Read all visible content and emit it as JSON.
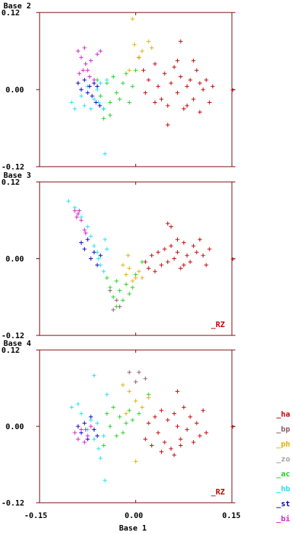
{
  "chart_data": [
    {
      "type": "scatter",
      "title": "Base 2",
      "ylabel": "Base 2",
      "xlim": [
        -0.15,
        0.15
      ],
      "ylim": [
        -0.12,
        0.12
      ],
      "ytick_labels": [
        "0.12",
        "0.00",
        "-0.12"
      ],
      "note": "",
      "series": [
        {
          "name": "ha",
          "points": [
            [
              0.005,
              0.05
            ],
            [
              0.012,
              0.03
            ],
            [
              0.02,
              0.015
            ],
            [
              0.03,
              0.04
            ],
            [
              0.035,
              0.005
            ],
            [
              0.04,
              -0.015
            ],
            [
              0.045,
              0.025
            ],
            [
              0.05,
              -0.025
            ],
            [
              0.055,
              0.01
            ],
            [
              0.06,
              0.035
            ],
            [
              0.065,
              -0.005
            ],
            [
              0.07,
              0.02
            ],
            [
              0.075,
              -0.03
            ],
            [
              0.08,
              0.005
            ],
            [
              0.085,
              0.015
            ],
            [
              0.09,
              -0.015
            ],
            [
              0.095,
              0.03
            ],
            [
              0.1,
              -0.035
            ],
            [
              0.105,
              0.0
            ],
            [
              0.11,
              0.015
            ],
            [
              0.115,
              -0.02
            ],
            [
              0.12,
              0.005
            ],
            [
              0.07,
              0.075
            ],
            [
              0.05,
              -0.055
            ],
            [
              0.03,
              -0.02
            ],
            [
              0.015,
              -0.005
            ],
            [
              0.08,
              -0.025
            ],
            [
              0.09,
              0.045
            ],
            [
              0.065,
              0.045
            ],
            [
              0.1,
              0.01
            ]
          ]
        },
        {
          "name": "ph",
          "points": [
            [
              -0.005,
              0.11
            ],
            [
              -0.002,
              0.07
            ],
            [
              0.01,
              0.06
            ],
            [
              0.02,
              0.075
            ],
            [
              0.025,
              0.065
            ],
            [
              -0.01,
              0.03
            ],
            [
              0.005,
              0.05
            ]
          ]
        },
        {
          "name": "ac",
          "points": [
            [
              -0.06,
              0.015
            ],
            [
              -0.055,
              -0.01
            ],
            [
              -0.05,
              -0.03
            ],
            [
              -0.045,
              0.01
            ],
            [
              -0.04,
              -0.02
            ],
            [
              -0.035,
              0.02
            ],
            [
              -0.03,
              -0.005
            ],
            [
              -0.025,
              -0.015
            ],
            [
              -0.02,
              0.01
            ],
            [
              -0.015,
              0.025
            ],
            [
              -0.01,
              -0.02
            ],
            [
              -0.005,
              0.005
            ],
            [
              0.0,
              0.03
            ],
            [
              -0.05,
              -0.045
            ],
            [
              -0.04,
              -0.04
            ]
          ]
        },
        {
          "name": "hb",
          "points": [
            [
              -0.1,
              -0.02
            ],
            [
              -0.095,
              -0.03
            ],
            [
              -0.085,
              -0.01
            ],
            [
              -0.08,
              -0.025
            ],
            [
              -0.075,
              0.005
            ],
            [
              -0.07,
              -0.03
            ],
            [
              -0.065,
              -0.015
            ],
            [
              -0.06,
              0.0
            ],
            [
              -0.058,
              -0.02
            ],
            [
              -0.055,
              0.01
            ],
            [
              -0.05,
              -0.03
            ],
            [
              -0.048,
              -0.1
            ],
            [
              -0.045,
              0.015
            ]
          ]
        },
        {
          "name": "st",
          "points": [
            [
              -0.09,
              0.01
            ],
            [
              -0.085,
              0.0
            ],
            [
              -0.08,
              0.015
            ],
            [
              -0.075,
              -0.005
            ],
            [
              -0.072,
              0.005
            ],
            [
              -0.068,
              -0.01
            ],
            [
              -0.065,
              0.01
            ],
            [
              -0.062,
              -0.02
            ],
            [
              -0.06,
              0.005
            ],
            [
              -0.056,
              -0.025
            ]
          ]
        },
        {
          "name": "bi",
          "points": [
            [
              -0.09,
              0.06
            ],
            [
              -0.085,
              0.05
            ],
            [
              -0.08,
              0.065
            ],
            [
              -0.078,
              0.04
            ],
            [
              -0.075,
              0.03
            ],
            [
              -0.072,
              0.02
            ],
            [
              -0.07,
              0.045
            ],
            [
              -0.065,
              0.015
            ],
            [
              -0.06,
              0.055
            ],
            [
              -0.055,
              0.06
            ],
            [
              -0.088,
              0.025
            ],
            [
              -0.082,
              0.03
            ]
          ]
        }
      ]
    },
    {
      "type": "scatter",
      "title": "Base 3",
      "ylabel": "Base 3",
      "xlim": [
        -0.15,
        0.15
      ],
      "ylim": [
        -0.12,
        0.12
      ],
      "ytick_labels": [
        "0.12",
        "0.00",
        "-0.12"
      ],
      "note": "_RZ",
      "series": [
        {
          "name": "ha",
          "points": [
            [
              0.015,
              -0.005
            ],
            [
              0.02,
              -0.015
            ],
            [
              0.025,
              0.005
            ],
            [
              0.03,
              -0.02
            ],
            [
              0.035,
              0.01
            ],
            [
              0.04,
              -0.01
            ],
            [
              0.045,
              0.015
            ],
            [
              0.05,
              -0.005
            ],
            [
              0.055,
              0.02
            ],
            [
              0.06,
              0.0
            ],
            [
              0.065,
              0.01
            ],
            [
              0.07,
              -0.015
            ],
            [
              0.075,
              0.025
            ],
            [
              0.08,
              0.005
            ],
            [
              0.085,
              -0.005
            ],
            [
              0.09,
              0.02
            ],
            [
              0.095,
              0.01
            ],
            [
              0.1,
              0.03
            ],
            [
              0.105,
              0.005
            ],
            [
              0.11,
              -0.01
            ],
            [
              0.115,
              0.015
            ],
            [
              0.05,
              0.055
            ],
            [
              0.055,
              0.05
            ],
            [
              0.065,
              0.03
            ],
            [
              0.075,
              -0.01
            ]
          ]
        },
        {
          "name": "bp",
          "points": [
            [
              -0.04,
              -0.05
            ],
            [
              -0.035,
              -0.08
            ],
            [
              -0.03,
              -0.065
            ],
            [
              -0.025,
              -0.075
            ]
          ]
        },
        {
          "name": "ph",
          "points": [
            [
              -0.02,
              -0.01
            ],
            [
              -0.015,
              -0.025
            ],
            [
              -0.01,
              -0.015
            ],
            [
              -0.005,
              -0.035
            ],
            [
              0.0,
              -0.03
            ],
            [
              0.005,
              -0.02
            ],
            [
              0.01,
              -0.03
            ],
            [
              -0.012,
              0.005
            ]
          ]
        },
        {
          "name": "ac",
          "points": [
            [
              -0.045,
              -0.03
            ],
            [
              -0.04,
              -0.045
            ],
            [
              -0.035,
              -0.06
            ],
            [
              -0.03,
              -0.035
            ],
            [
              -0.025,
              -0.05
            ],
            [
              -0.02,
              -0.065
            ],
            [
              -0.015,
              -0.04
            ],
            [
              -0.01,
              -0.055
            ],
            [
              -0.005,
              -0.045
            ],
            [
              0.0,
              -0.025
            ],
            [
              0.01,
              -0.005
            ],
            [
              -0.03,
              -0.075
            ]
          ]
        },
        {
          "name": "hb",
          "points": [
            [
              -0.105,
              0.09
            ],
            [
              -0.095,
              0.08
            ],
            [
              -0.085,
              0.065
            ],
            [
              -0.075,
              0.05
            ],
            [
              -0.07,
              0.035
            ],
            [
              -0.065,
              0.02
            ],
            [
              -0.06,
              0.01
            ],
            [
              -0.058,
              0.0
            ],
            [
              -0.055,
              -0.01
            ],
            [
              -0.05,
              -0.02
            ],
            [
              -0.048,
              0.03
            ],
            [
              -0.045,
              0.015
            ]
          ]
        },
        {
          "name": "st",
          "points": [
            [
              -0.085,
              0.025
            ],
            [
              -0.08,
              0.015
            ],
            [
              -0.075,
              0.03
            ],
            [
              -0.07,
              0.0
            ],
            [
              -0.065,
              0.01
            ],
            [
              -0.06,
              -0.01
            ],
            [
              -0.055,
              0.005
            ]
          ]
        },
        {
          "name": "bi",
          "points": [
            [
              -0.095,
              0.075
            ],
            [
              -0.09,
              0.07
            ],
            [
              -0.085,
              0.06
            ],
            [
              -0.08,
              0.045
            ],
            [
              -0.078,
              0.04
            ],
            [
              -0.092,
              0.065
            ],
            [
              -0.088,
              0.075
            ]
          ]
        }
      ]
    },
    {
      "type": "scatter",
      "title": "Base 4",
      "ylabel": "Base 4",
      "xlabel": "Base 1",
      "xlim": [
        -0.15,
        0.15
      ],
      "ylim": [
        -0.12,
        0.12
      ],
      "ytick_labels": [
        "0.12",
        "0.00",
        "-0.12"
      ],
      "xtick_labels": [
        "-0.15",
        "0.00",
        "0.15"
      ],
      "note": "_RZ",
      "series": [
        {
          "name": "ha",
          "points": [
            [
              0.015,
              -0.02
            ],
            [
              0.02,
              0.005
            ],
            [
              0.025,
              -0.03
            ],
            [
              0.03,
              0.015
            ],
            [
              0.035,
              -0.01
            ],
            [
              0.04,
              0.025
            ],
            [
              0.045,
              -0.025
            ],
            [
              0.05,
              0.01
            ],
            [
              0.055,
              -0.035
            ],
            [
              0.06,
              0.02
            ],
            [
              0.065,
              0.0
            ],
            [
              0.07,
              -0.02
            ],
            [
              0.075,
              0.03
            ],
            [
              0.08,
              -0.005
            ],
            [
              0.085,
              0.015
            ],
            [
              0.09,
              -0.025
            ],
            [
              0.095,
              0.005
            ],
            [
              0.1,
              -0.015
            ],
            [
              0.105,
              0.025
            ],
            [
              0.11,
              -0.01
            ],
            [
              0.065,
              0.055
            ],
            [
              0.06,
              -0.045
            ],
            [
              0.04,
              -0.04
            ],
            [
              0.07,
              -0.03
            ]
          ]
        },
        {
          "name": "bp",
          "points": [
            [
              -0.01,
              0.085
            ],
            [
              0.0,
              0.07
            ],
            [
              0.005,
              0.085
            ],
            [
              0.015,
              0.075
            ]
          ]
        },
        {
          "name": "ph",
          "points": [
            [
              -0.02,
              0.065
            ],
            [
              -0.01,
              0.055
            ],
            [
              0.0,
              0.04
            ],
            [
              0.01,
              0.03
            ],
            [
              0.02,
              0.045
            ],
            [
              0.0,
              -0.055
            ],
            [
              -0.015,
              0.02
            ]
          ]
        },
        {
          "name": "ac",
          "points": [
            [
              -0.045,
              0.02
            ],
            [
              -0.04,
              0.0
            ],
            [
              -0.035,
              0.03
            ],
            [
              -0.03,
              -0.015
            ],
            [
              -0.025,
              0.015
            ],
            [
              -0.02,
              -0.01
            ],
            [
              -0.015,
              0.005
            ],
            [
              -0.01,
              0.025
            ],
            [
              -0.005,
              0.01
            ],
            [
              0.005,
              0.02
            ],
            [
              -0.05,
              -0.03
            ],
            [
              0.02,
              0.05
            ]
          ]
        },
        {
          "name": "hb",
          "points": [
            [
              -0.1,
              0.03
            ],
            [
              -0.09,
              0.035
            ],
            [
              -0.085,
              0.02
            ],
            [
              -0.075,
              -0.005
            ],
            [
              -0.07,
              0.01
            ],
            [
              -0.065,
              -0.02
            ],
            [
              -0.06,
              0.005
            ],
            [
              -0.058,
              -0.035
            ],
            [
              -0.055,
              -0.05
            ],
            [
              -0.05,
              -0.015
            ],
            [
              -0.045,
              0.05
            ],
            [
              -0.048,
              -0.085
            ],
            [
              -0.065,
              0.08
            ]
          ]
        },
        {
          "name": "st",
          "points": [
            [
              -0.09,
              0.0
            ],
            [
              -0.085,
              -0.01
            ],
            [
              -0.08,
              0.005
            ],
            [
              -0.075,
              -0.02
            ],
            [
              -0.07,
              0.015
            ],
            [
              -0.065,
              -0.005
            ],
            [
              -0.06,
              -0.015
            ]
          ]
        },
        {
          "name": "bi",
          "points": [
            [
              -0.095,
              -0.01
            ],
            [
              -0.09,
              -0.02
            ],
            [
              -0.085,
              -0.005
            ],
            [
              -0.08,
              -0.025
            ],
            [
              -0.075,
              -0.015
            ],
            [
              -0.07,
              0.0
            ],
            [
              -0.078,
              -0.005
            ]
          ]
        }
      ]
    }
  ],
  "legend": [
    {
      "name": "ha",
      "label": "_ha",
      "color": "#c00000"
    },
    {
      "name": "bp",
      "label": "_bp",
      "color": "#8b5a6b"
    },
    {
      "name": "ph",
      "label": "_ph",
      "color": "#e0b000"
    },
    {
      "name": "zo",
      "label": "_zo",
      "color": "#a0a0a0"
    },
    {
      "name": "ac",
      "label": "_ac",
      "color": "#20d020"
    },
    {
      "name": "hb",
      "label": "_hb",
      "color": "#20e0f0"
    },
    {
      "name": "st",
      "label": "_st",
      "color": "#0000c0"
    },
    {
      "name": "bi",
      "label": "_bi",
      "color": "#d020d0"
    }
  ],
  "frame_color": "#700000"
}
